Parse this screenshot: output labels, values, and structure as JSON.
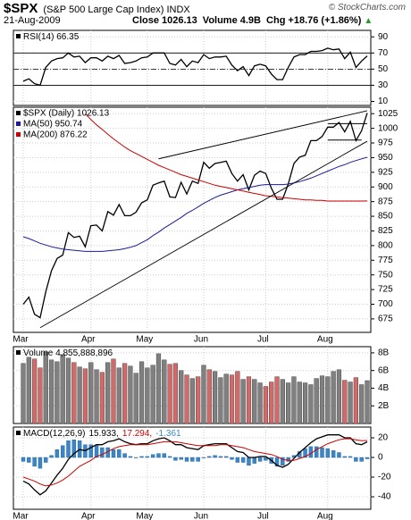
{
  "header": {
    "symbol": "$SPX",
    "name": "(S&P 500 Large Cap Index)",
    "exchange": "INDX",
    "credit": "© StockCharts.com",
    "date": "21-Aug-2009",
    "close_label": "Close",
    "close": "1026.13",
    "volume_label": "Volume",
    "volume": "4.9B",
    "chg_label": "Chg",
    "chg": "+18.76 (+1.86%)"
  },
  "chart_data": [
    {
      "type": "line",
      "label": "RSI(14) 66.35",
      "label_color": "#000000",
      "xlabels": false,
      "categories": [
        "Mar",
        null,
        null,
        null,
        null,
        null,
        null,
        null,
        null,
        null,
        null,
        null,
        "Apr",
        null,
        null,
        null,
        null,
        null,
        null,
        null,
        null,
        null,
        "May",
        null,
        null,
        null,
        null,
        null,
        null,
        null,
        null,
        null,
        "Jun",
        null,
        null,
        null,
        null,
        null,
        null,
        null,
        null,
        null,
        null,
        "Jul",
        null,
        null,
        null,
        null,
        null,
        null,
        null,
        null,
        null,
        null,
        "Aug",
        null,
        null,
        null,
        null,
        null,
        null,
        null
      ],
      "series": [
        {
          "name": "RSI(14)",
          "color": "#000000",
          "values": [
            35,
            38,
            32,
            30,
            52,
            60,
            63,
            64,
            70,
            65,
            66,
            58,
            64,
            64,
            60,
            66,
            63,
            67,
            57,
            58,
            60,
            64,
            65,
            70,
            70,
            70,
            57,
            55,
            62,
            53,
            60,
            58,
            68,
            63,
            65,
            65,
            66,
            55,
            48,
            53,
            42,
            54,
            56,
            54,
            44,
            37,
            37,
            52,
            65,
            68,
            68,
            72,
            72,
            73,
            76,
            74,
            75,
            63,
            71,
            52,
            60,
            66.35
          ]
        }
      ],
      "ylim": [
        5,
        98
      ],
      "yticks": [
        10,
        30,
        50,
        70,
        90
      ],
      "grid": true,
      "hlines": [
        {
          "value": 70,
          "style": "solid"
        },
        {
          "value": 50,
          "style": "dashed"
        },
        {
          "value": 30,
          "style": "solid"
        }
      ]
    },
    {
      "type": "line",
      "xlabels": true,
      "categories": [
        "Mar",
        null,
        null,
        null,
        null,
        null,
        null,
        null,
        null,
        null,
        null,
        null,
        "Apr",
        null,
        null,
        null,
        null,
        null,
        null,
        null,
        null,
        null,
        "May",
        null,
        null,
        null,
        null,
        null,
        null,
        null,
        null,
        null,
        "Jun",
        null,
        null,
        null,
        null,
        null,
        null,
        null,
        null,
        null,
        null,
        "Jul",
        null,
        null,
        null,
        null,
        null,
        null,
        null,
        null,
        null,
        null,
        "Aug",
        null,
        null,
        null,
        null,
        null,
        null,
        null
      ],
      "series": [
        {
          "name": "$SPX (Daily) 1026.13",
          "color": "#000000",
          "values": [
            700,
            712,
            683,
            677,
            721,
            757,
            778,
            784,
            822,
            814,
            816,
            798,
            834,
            835,
            825,
            858,
            852,
            870,
            851,
            851,
            857,
            873,
            878,
            903,
            907,
            910,
            883,
            882,
            908,
            888,
            910,
            906,
            942,
            932,
            940,
            942,
            944,
            923,
            910,
            921,
            895,
            920,
            927,
            923,
            898,
            879,
            879,
            905,
            940,
            951,
            954,
            979,
            979,
            986,
            1002,
            1002,
            1010,
            994,
            1012,
            979,
            996,
            1026.13
          ]
        },
        {
          "name": "MA(50) 950.74",
          "color": "#1a1a9a",
          "values": [
            815,
            812,
            808,
            804,
            801,
            798,
            796,
            794,
            793,
            792,
            791,
            790,
            790,
            790,
            790,
            791,
            792,
            793,
            795,
            797,
            800,
            805,
            810,
            817,
            823,
            830,
            836,
            842,
            848,
            855,
            860,
            866,
            872,
            877,
            882,
            886,
            889,
            892,
            895,
            897,
            899,
            901,
            903,
            904,
            904,
            904,
            904,
            905,
            907,
            909,
            912,
            915,
            919,
            923,
            927,
            931,
            935,
            938,
            942,
            945,
            948,
            950.74
          ]
        },
        {
          "name": "MA(200) 876.22",
          "color": "#cc0000",
          "values": [
            null,
            null,
            null,
            null,
            null,
            null,
            null,
            null,
            null,
            null,
            null,
            1025,
            1015,
            1006,
            998,
            990,
            982,
            975,
            968,
            962,
            957,
            952,
            947,
            942,
            937,
            933,
            929,
            925,
            921,
            918,
            915,
            912,
            909,
            906,
            903,
            901,
            899,
            897,
            895,
            893,
            891,
            889,
            887,
            885,
            884,
            883,
            882,
            881,
            880,
            879,
            878,
            878,
            877,
            877,
            876,
            876,
            876,
            876,
            876,
            876,
            876,
            876.22
          ]
        }
      ],
      "ylim": [
        652,
        1036
      ],
      "yticks": [
        675,
        700,
        725,
        750,
        775,
        800,
        825,
        850,
        875,
        900,
        925,
        950,
        975,
        1000,
        1025
      ],
      "grid": true,
      "trendlines": [
        {
          "from": [
            3,
            660
          ],
          "to": [
            61,
            978
          ]
        },
        {
          "from": [
            24,
            948
          ],
          "to": [
            61,
            1030
          ]
        },
        {
          "from": [
            54,
            1008
          ],
          "to": [
            61,
            1008
          ]
        },
        {
          "from": [
            54,
            980
          ],
          "to": [
            60,
            980
          ]
        }
      ]
    },
    {
      "type": "bar",
      "label": "Volume 4,855,888,896",
      "label_color": "#000000",
      "xlabels": false,
      "categories": [
        "Mar",
        null,
        null,
        null,
        null,
        null,
        null,
        null,
        null,
        null,
        null,
        null,
        "Apr",
        null,
        null,
        null,
        null,
        null,
        null,
        null,
        null,
        null,
        "May",
        null,
        null,
        null,
        null,
        null,
        null,
        null,
        null,
        null,
        "Jun",
        null,
        null,
        null,
        null,
        null,
        null,
        null,
        null,
        null,
        null,
        "Jul",
        null,
        null,
        null,
        null,
        null,
        null,
        null,
        null,
        null,
        null,
        "Aug",
        null,
        null,
        null,
        null,
        null,
        null,
        null
      ],
      "values": [
        6800000000.0,
        7500000000.0,
        7300000000.0,
        6300000000.0,
        8100000000.0,
        7200000000.0,
        7000000000.0,
        7800000000.0,
        7400000000.0,
        6900000000.0,
        6400000000.0,
        6200000000.0,
        6900000000.0,
        6100000000.0,
        5800000000.0,
        6900000000.0,
        7300000000.0,
        6300000000.0,
        6800000000.0,
        6500000000.0,
        5700000000.0,
        7000000000.0,
        6300000000.0,
        6600000000.0,
        7900000000.0,
        7200000000.0,
        6700000000.0,
        6800000000.0,
        6000000000.0,
        5500000000.0,
        5100000000.0,
        5300000000.0,
        6600000000.0,
        6100000000.0,
        5900000000.0,
        5200000000.0,
        5600000000.0,
        5500000000.0,
        5900000000.0,
        5000000000.0,
        5300000000.0,
        5000000000.0,
        4600000000.0,
        4200000000.0,
        4700000000.0,
        5300000000.0,
        5000000000.0,
        4600000000.0,
        5300000000.0,
        4700000000.0,
        4600000000.0,
        4400000000.0,
        5100000000.0,
        5400000000.0,
        5300000000.0,
        5900000000.0,
        6100000000.0,
        4900000000.0,
        4700000000.0,
        5200000000.0,
        4400000000.0,
        4855888896
      ],
      "up_color": "#808080",
      "down_color": "#d26a6a",
      "ylim": [
        0,
        8700000000.0
      ],
      "yticks": [
        {
          "value": 2000000000.0,
          "label": "2B"
        },
        {
          "value": 4000000000.0,
          "label": "4B"
        },
        {
          "value": 6000000000.0,
          "label": "6B"
        },
        {
          "value": 8000000000.0,
          "label": "8B"
        }
      ],
      "grid": true
    },
    {
      "type": "line",
      "label": "MACD(12,26,9)",
      "label_color": "#000000",
      "xlabels": true,
      "categories": [
        "Mar",
        null,
        null,
        null,
        null,
        null,
        null,
        null,
        null,
        null,
        null,
        null,
        "Apr",
        null,
        null,
        null,
        null,
        null,
        null,
        null,
        null,
        null,
        "May",
        null,
        null,
        null,
        null,
        null,
        null,
        null,
        null,
        null,
        "Jun",
        null,
        null,
        null,
        null,
        null,
        null,
        null,
        null,
        null,
        null,
        "Jul",
        null,
        null,
        null,
        null,
        null,
        null,
        null,
        null,
        null,
        null,
        "Aug",
        null,
        null,
        null,
        null,
        null,
        null,
        null
      ],
      "series": [
        {
          "name": "15.933,",
          "color": "#000000",
          "kind": "line",
          "values": [
            -24,
            -27,
            -33,
            -38,
            -34,
            -26,
            -18,
            -11,
            -2,
            4,
            8,
            7,
            10,
            13,
            13,
            16,
            17,
            19,
            16,
            14,
            13,
            14,
            14,
            17,
            19,
            20,
            17,
            13,
            13,
            10,
            9,
            8,
            12,
            13,
            14,
            14,
            14,
            10,
            6,
            5,
            0,
            0,
            1,
            1,
            -3,
            -8,
            -10,
            -7,
            -1,
            5,
            10,
            15,
            19,
            21,
            23,
            23,
            23,
            20,
            20,
            14,
            13,
            15.933
          ]
        },
        {
          "name": "17.294,",
          "color": "#cc0000",
          "kind": "line",
          "values": [
            -20,
            -22,
            -24,
            -27,
            -29,
            -28,
            -26,
            -23,
            -19,
            -14,
            -9,
            -6,
            -3,
            1,
            3,
            6,
            9,
            11,
            12,
            13,
            13,
            13,
            13,
            14,
            15,
            16,
            16,
            16,
            15,
            14,
            13,
            12,
            12,
            12,
            12,
            13,
            13,
            12,
            11,
            10,
            8,
            6,
            5,
            4,
            3,
            1,
            -2,
            -3,
            -3,
            -1,
            1,
            4,
            8,
            11,
            14,
            16,
            18,
            19,
            19,
            18,
            17,
            17.294
          ]
        },
        {
          "name": "-1.361",
          "color": "#3a86c8",
          "kind": "bar",
          "values": [
            -4,
            -5,
            -9,
            -11,
            -5,
            2,
            8,
            12,
            17,
            18,
            17,
            13,
            13,
            12,
            10,
            10,
            8,
            8,
            4,
            1,
            0,
            1,
            1,
            3,
            4,
            4,
            1,
            -3,
            -2,
            -4,
            -4,
            -4,
            0,
            1,
            2,
            1,
            1,
            -2,
            -5,
            -5,
            -8,
            -6,
            -4,
            -3,
            -6,
            -9,
            -8,
            -4,
            2,
            6,
            9,
            11,
            11,
            10,
            9,
            7,
            5,
            1,
            1,
            -4,
            -4,
            -1.361
          ]
        }
      ],
      "ylim": [
        -52.7,
        30.9
      ],
      "yticks": [
        -40,
        -20,
        0,
        20
      ],
      "grid": true
    }
  ]
}
